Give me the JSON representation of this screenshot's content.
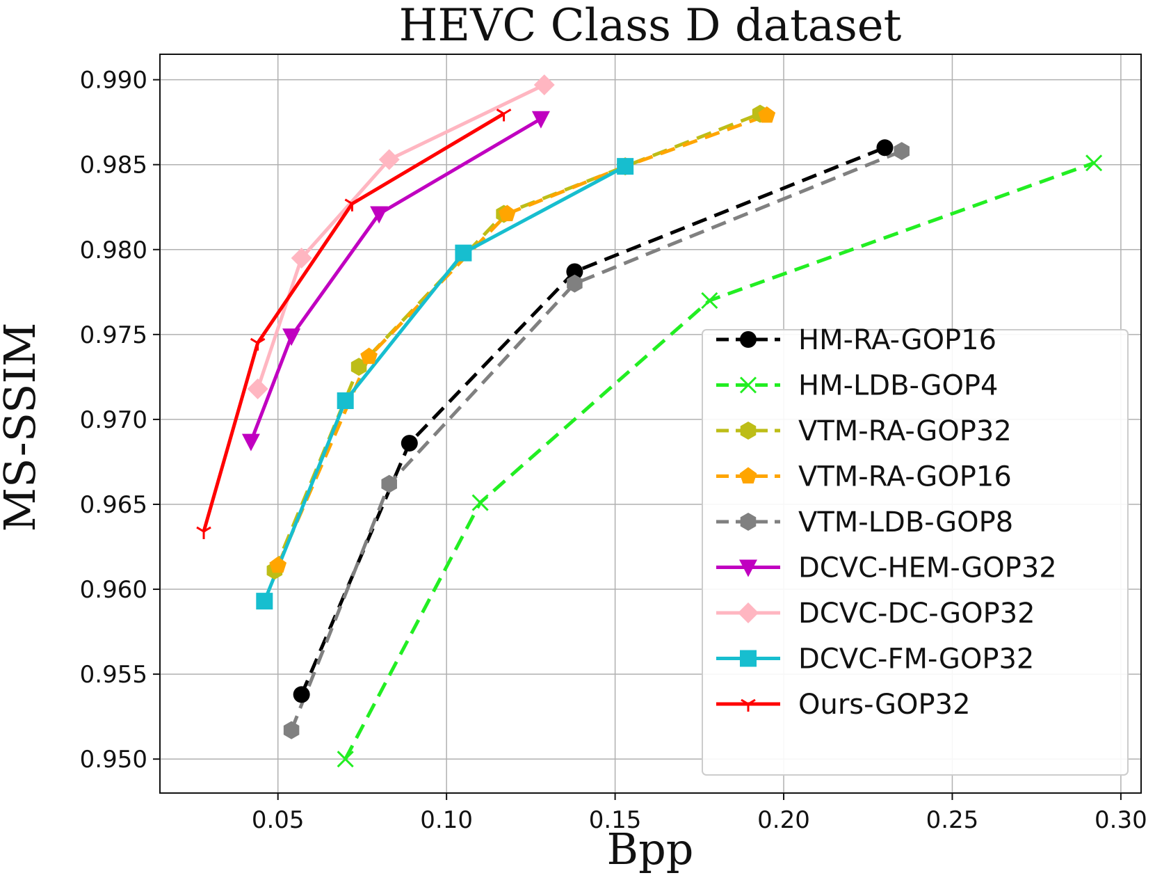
{
  "chart_data": {
    "type": "line",
    "title": "HEVC Class D dataset",
    "xlabel": "Bpp",
    "ylabel": "MS-SSIM",
    "xlim": [
      0.015,
      0.306
    ],
    "ylim": [
      0.948,
      0.9915
    ],
    "xticks": [
      0.05,
      0.1,
      0.15,
      0.2,
      0.25,
      0.3
    ],
    "xtick_labels": [
      "0.05",
      "0.10",
      "0.15",
      "0.20",
      "0.25",
      "0.30"
    ],
    "yticks": [
      0.95,
      0.955,
      0.96,
      0.965,
      0.97,
      0.975,
      0.98,
      0.985,
      0.99
    ],
    "ytick_labels": [
      "0.950",
      "0.955",
      "0.960",
      "0.965",
      "0.970",
      "0.975",
      "0.980",
      "0.985",
      "0.990"
    ],
    "grid": true,
    "legend_position": "lower-right",
    "series": [
      {
        "name": "HM-RA-GOP16",
        "color": "#000000",
        "dash": "dashed",
        "marker": "circle",
        "x": [
          0.057,
          0.089,
          0.138,
          0.23
        ],
        "y": [
          0.9538,
          0.9686,
          0.9787,
          0.986
        ]
      },
      {
        "name": "HM-LDB-GOP4",
        "color": "#22ee22",
        "dash": "dashed",
        "marker": "x",
        "x": [
          0.07,
          0.11,
          0.178,
          0.292
        ],
        "y": [
          0.95,
          0.9651,
          0.977,
          0.9851
        ]
      },
      {
        "name": "VTM-RA-GOP32",
        "color": "#bdbd17",
        "dash": "dashed",
        "marker": "hexagon",
        "x": [
          0.049,
          0.074,
          0.117,
          0.153,
          0.193
        ],
        "y": [
          0.9611,
          0.9731,
          0.9821,
          0.9849,
          0.988
        ]
      },
      {
        "name": "VTM-RA-GOP16",
        "color": "#ffa500",
        "dash": "dashed",
        "marker": "pentagon",
        "x": [
          0.05,
          0.077,
          0.118,
          0.153,
          0.195
        ],
        "y": [
          0.9614,
          0.9737,
          0.9821,
          0.9849,
          0.9879
        ]
      },
      {
        "name": "VTM-LDB-GOP8",
        "color": "#808080",
        "dash": "dashed",
        "marker": "hexagon",
        "x": [
          0.054,
          0.083,
          0.138,
          0.235
        ],
        "y": [
          0.9517,
          0.9662,
          0.978,
          0.9858
        ]
      },
      {
        "name": "DCVC-HEM-GOP32",
        "color": "#c000c0",
        "dash": "solid",
        "marker": "triangle-down",
        "x": [
          0.042,
          0.054,
          0.08,
          0.128
        ],
        "y": [
          0.9687,
          0.9749,
          0.9821,
          0.9877
        ]
      },
      {
        "name": "DCVC-DC-GOP32",
        "color": "#ffb6c1",
        "dash": "solid",
        "marker": "diamond",
        "x": [
          0.044,
          0.057,
          0.083,
          0.129
        ],
        "y": [
          0.9718,
          0.9795,
          0.9853,
          0.9897
        ]
      },
      {
        "name": "DCVC-FM-GOP32",
        "color": "#17becf",
        "dash": "solid",
        "marker": "square",
        "x": [
          0.046,
          0.07,
          0.105,
          0.153
        ],
        "y": [
          0.9593,
          0.9711,
          0.9798,
          0.9849
        ]
      },
      {
        "name": "Ours-GOP32",
        "color": "#ff0000",
        "dash": "solid",
        "marker": "tri-down",
        "x": [
          0.028,
          0.044,
          0.072,
          0.117
        ],
        "y": [
          0.9634,
          0.9745,
          0.9827,
          0.988
        ]
      }
    ]
  }
}
